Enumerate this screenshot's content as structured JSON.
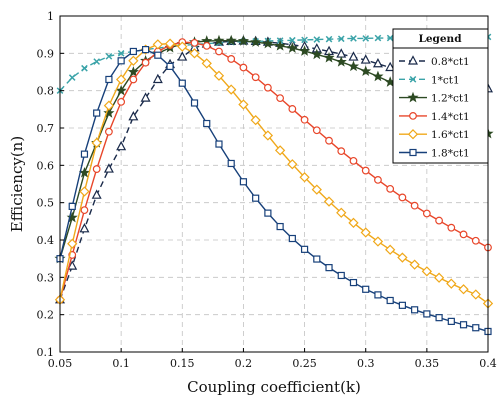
{
  "chart_data": {
    "type": "line",
    "title": "",
    "xlabel": "Coupling coefficient(k)",
    "ylabel": "Efficiency(n)",
    "xlim": [
      0.05,
      0.4
    ],
    "ylim": [
      0.1,
      1.0
    ],
    "x_ticks": [
      "0.05",
      "0.1",
      "0.15",
      "0.2",
      "0.25",
      "0.3",
      "0.35",
      "0.4"
    ],
    "y_ticks": [
      "0.1",
      "0.2",
      "0.3",
      "0.4",
      "0.5",
      "0.6",
      "0.7",
      "0.8",
      "0.9",
      "1"
    ],
    "grid": true,
    "legend": {
      "title": "Legend",
      "position": "top-right"
    },
    "series": [
      {
        "name": "0.8*ct1",
        "color": "#1a2a4a",
        "marker": "triangle",
        "dash": true,
        "points": [
          [
            0.05,
            0.24
          ],
          [
            0.06,
            0.33
          ],
          [
            0.07,
            0.43
          ],
          [
            0.08,
            0.52
          ],
          [
            0.09,
            0.59
          ],
          [
            0.1,
            0.65
          ],
          [
            0.11,
            0.73
          ],
          [
            0.12,
            0.78
          ],
          [
            0.13,
            0.83
          ],
          [
            0.14,
            0.87
          ],
          [
            0.15,
            0.89
          ],
          [
            0.16,
            0.915
          ],
          [
            0.17,
            0.925
          ],
          [
            0.18,
            0.93
          ],
          [
            0.19,
            0.932
          ],
          [
            0.2,
            0.933
          ],
          [
            0.21,
            0.932
          ],
          [
            0.22,
            0.93
          ],
          [
            0.23,
            0.927
          ],
          [
            0.24,
            0.923
          ],
          [
            0.25,
            0.918
          ],
          [
            0.26,
            0.912
          ],
          [
            0.27,
            0.905
          ],
          [
            0.28,
            0.898
          ],
          [
            0.29,
            0.89
          ],
          [
            0.3,
            0.882
          ],
          [
            0.31,
            0.872
          ],
          [
            0.32,
            0.862
          ],
          [
            0.33,
            0.851
          ],
          [
            0.34,
            0.84
          ],
          [
            0.35,
            0.828
          ],
          [
            0.36,
            0.817
          ],
          [
            0.37,
            0.812
          ],
          [
            0.38,
            0.808
          ],
          [
            0.39,
            0.805
          ],
          [
            0.4,
            0.805
          ]
        ]
      },
      {
        "name": "1*ct1",
        "color": "#3aa3a8",
        "marker": "x",
        "dash": true,
        "points": [
          [
            0.05,
            0.8
          ],
          [
            0.06,
            0.835
          ],
          [
            0.07,
            0.86
          ],
          [
            0.08,
            0.878
          ],
          [
            0.09,
            0.892
          ],
          [
            0.1,
            0.9
          ],
          [
            0.11,
            0.905
          ],
          [
            0.12,
            0.91
          ],
          [
            0.13,
            0.914
          ],
          [
            0.14,
            0.918
          ],
          [
            0.15,
            0.921
          ],
          [
            0.16,
            0.924
          ],
          [
            0.17,
            0.926
          ],
          [
            0.18,
            0.928
          ],
          [
            0.19,
            0.93
          ],
          [
            0.2,
            0.931
          ],
          [
            0.21,
            0.932
          ],
          [
            0.22,
            0.933
          ],
          [
            0.23,
            0.934
          ],
          [
            0.24,
            0.935
          ],
          [
            0.25,
            0.936
          ],
          [
            0.26,
            0.937
          ],
          [
            0.27,
            0.938
          ],
          [
            0.28,
            0.939
          ],
          [
            0.29,
            0.94
          ],
          [
            0.3,
            0.94
          ],
          [
            0.31,
            0.941
          ],
          [
            0.32,
            0.941
          ],
          [
            0.33,
            0.942
          ],
          [
            0.34,
            0.942
          ],
          [
            0.35,
            0.943
          ],
          [
            0.36,
            0.943
          ],
          [
            0.37,
            0.943
          ],
          [
            0.38,
            0.944
          ],
          [
            0.39,
            0.944
          ],
          [
            0.4,
            0.944
          ]
        ]
      },
      {
        "name": "1.2*ct1",
        "color": "#2d4a23",
        "marker": "star",
        "dash": false,
        "points": [
          [
            0.05,
            0.35
          ],
          [
            0.06,
            0.46
          ],
          [
            0.07,
            0.58
          ],
          [
            0.08,
            0.66
          ],
          [
            0.09,
            0.74
          ],
          [
            0.1,
            0.8
          ],
          [
            0.11,
            0.85
          ],
          [
            0.12,
            0.88
          ],
          [
            0.13,
            0.9
          ],
          [
            0.14,
            0.915
          ],
          [
            0.15,
            0.925
          ],
          [
            0.16,
            0.93
          ],
          [
            0.17,
            0.933
          ],
          [
            0.18,
            0.934
          ],
          [
            0.19,
            0.934
          ],
          [
            0.2,
            0.933
          ],
          [
            0.21,
            0.93
          ],
          [
            0.22,
            0.926
          ],
          [
            0.23,
            0.92
          ],
          [
            0.24,
            0.914
          ],
          [
            0.25,
            0.906
          ],
          [
            0.26,
            0.897
          ],
          [
            0.27,
            0.888
          ],
          [
            0.28,
            0.877
          ],
          [
            0.29,
            0.865
          ],
          [
            0.3,
            0.852
          ],
          [
            0.31,
            0.838
          ],
          [
            0.32,
            0.823
          ],
          [
            0.33,
            0.808
          ],
          [
            0.34,
            0.792
          ],
          [
            0.35,
            0.776
          ],
          [
            0.36,
            0.759
          ],
          [
            0.37,
            0.742
          ],
          [
            0.38,
            0.724
          ],
          [
            0.39,
            0.705
          ],
          [
            0.4,
            0.685
          ]
        ]
      },
      {
        "name": "1.4*ct1",
        "color": "#e8462a",
        "marker": "circle",
        "dash": false,
        "points": [
          [
            0.05,
            0.24
          ],
          [
            0.06,
            0.36
          ],
          [
            0.07,
            0.48
          ],
          [
            0.08,
            0.59
          ],
          [
            0.09,
            0.69
          ],
          [
            0.1,
            0.77
          ],
          [
            0.11,
            0.83
          ],
          [
            0.12,
            0.875
          ],
          [
            0.13,
            0.905
          ],
          [
            0.14,
            0.922
          ],
          [
            0.15,
            0.93
          ],
          [
            0.16,
            0.928
          ],
          [
            0.17,
            0.92
          ],
          [
            0.18,
            0.905
          ],
          [
            0.19,
            0.885
          ],
          [
            0.2,
            0.862
          ],
          [
            0.21,
            0.836
          ],
          [
            0.22,
            0.808
          ],
          [
            0.23,
            0.78
          ],
          [
            0.24,
            0.751
          ],
          [
            0.25,
            0.722
          ],
          [
            0.26,
            0.694
          ],
          [
            0.27,
            0.666
          ],
          [
            0.28,
            0.638
          ],
          [
            0.29,
            0.612
          ],
          [
            0.3,
            0.586
          ],
          [
            0.31,
            0.561
          ],
          [
            0.32,
            0.537
          ],
          [
            0.33,
            0.514
          ],
          [
            0.34,
            0.492
          ],
          [
            0.35,
            0.471
          ],
          [
            0.36,
            0.452
          ],
          [
            0.37,
            0.433
          ],
          [
            0.38,
            0.415
          ],
          [
            0.39,
            0.398
          ],
          [
            0.4,
            0.38
          ]
        ]
      },
      {
        "name": "1.6*ct1",
        "color": "#f0a81a",
        "marker": "diamond",
        "dash": false,
        "points": [
          [
            0.05,
            0.24
          ],
          [
            0.06,
            0.39
          ],
          [
            0.07,
            0.53
          ],
          [
            0.08,
            0.66
          ],
          [
            0.09,
            0.76
          ],
          [
            0.1,
            0.83
          ],
          [
            0.11,
            0.88
          ],
          [
            0.12,
            0.91
          ],
          [
            0.13,
            0.924
          ],
          [
            0.14,
            0.926
          ],
          [
            0.15,
            0.918
          ],
          [
            0.16,
            0.9
          ],
          [
            0.17,
            0.873
          ],
          [
            0.18,
            0.84
          ],
          [
            0.19,
            0.803
          ],
          [
            0.2,
            0.763
          ],
          [
            0.21,
            0.721
          ],
          [
            0.22,
            0.68
          ],
          [
            0.23,
            0.64
          ],
          [
            0.24,
            0.603
          ],
          [
            0.25,
            0.568
          ],
          [
            0.26,
            0.535
          ],
          [
            0.27,
            0.503
          ],
          [
            0.28,
            0.473
          ],
          [
            0.29,
            0.446
          ],
          [
            0.3,
            0.42
          ],
          [
            0.31,
            0.396
          ],
          [
            0.32,
            0.374
          ],
          [
            0.33,
            0.353
          ],
          [
            0.34,
            0.334
          ],
          [
            0.35,
            0.316
          ],
          [
            0.36,
            0.299
          ],
          [
            0.37,
            0.283
          ],
          [
            0.38,
            0.268
          ],
          [
            0.39,
            0.254
          ],
          [
            0.4,
            0.23
          ]
        ]
      },
      {
        "name": "1.8*ct1",
        "color": "#17407a",
        "marker": "square",
        "dash": false,
        "points": [
          [
            0.05,
            0.35
          ],
          [
            0.06,
            0.49
          ],
          [
            0.07,
            0.63
          ],
          [
            0.08,
            0.74
          ],
          [
            0.09,
            0.83
          ],
          [
            0.1,
            0.88
          ],
          [
            0.11,
            0.905
          ],
          [
            0.12,
            0.91
          ],
          [
            0.13,
            0.895
          ],
          [
            0.14,
            0.865
          ],
          [
            0.15,
            0.82
          ],
          [
            0.16,
            0.767
          ],
          [
            0.17,
            0.712
          ],
          [
            0.18,
            0.657
          ],
          [
            0.19,
            0.605
          ],
          [
            0.2,
            0.556
          ],
          [
            0.21,
            0.512
          ],
          [
            0.22,
            0.472
          ],
          [
            0.23,
            0.436
          ],
          [
            0.24,
            0.404
          ],
          [
            0.25,
            0.375
          ],
          [
            0.26,
            0.349
          ],
          [
            0.27,
            0.326
          ],
          [
            0.28,
            0.305
          ],
          [
            0.29,
            0.286
          ],
          [
            0.3,
            0.268
          ],
          [
            0.31,
            0.253
          ],
          [
            0.32,
            0.238
          ],
          [
            0.33,
            0.225
          ],
          [
            0.34,
            0.213
          ],
          [
            0.35,
            0.202
          ],
          [
            0.36,
            0.192
          ],
          [
            0.37,
            0.182
          ],
          [
            0.38,
            0.173
          ],
          [
            0.39,
            0.165
          ],
          [
            0.4,
            0.155
          ]
        ]
      }
    ]
  }
}
